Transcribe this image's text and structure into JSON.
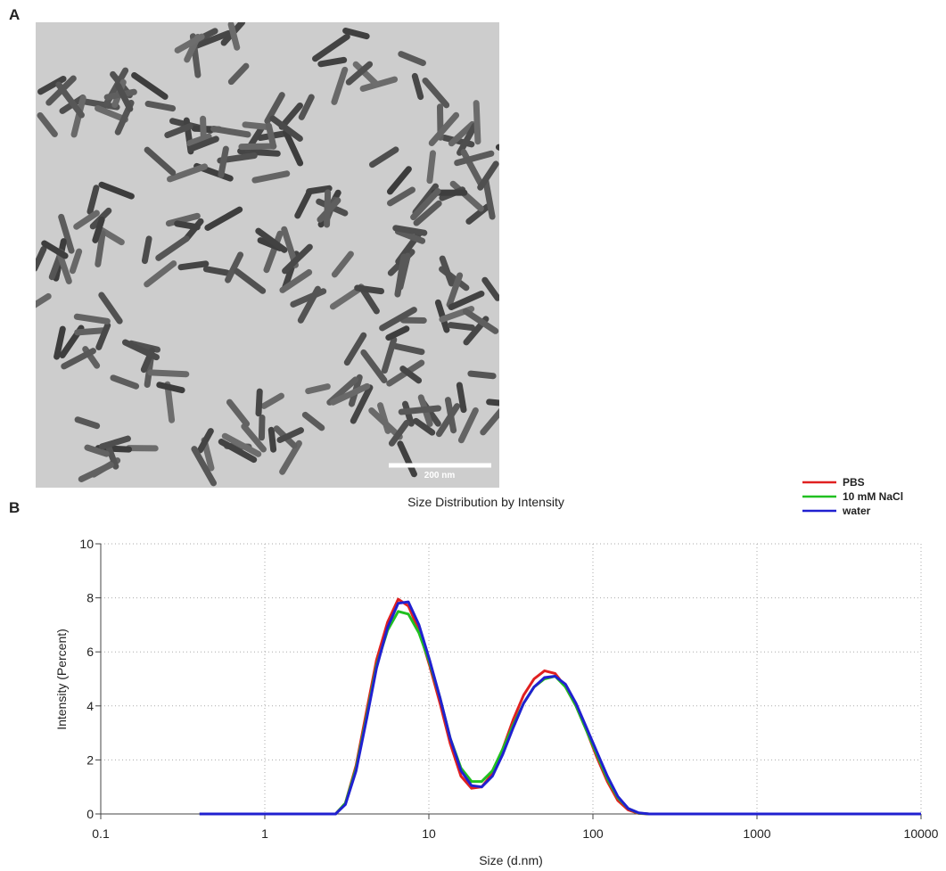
{
  "figure": {
    "panel_a_label": "A",
    "scale_bar_label": "200 nm",
    "panel_b_label": "B"
  },
  "chart_data": {
    "type": "line",
    "title": "Size Distribution by Intensity",
    "x_label": "Size (d.nm)",
    "y_label": "Intensity (Percent)",
    "x_scale": "log",
    "xlim": [
      0.1,
      10000
    ],
    "xticks": [
      0.1,
      1,
      10,
      100,
      1000,
      10000
    ],
    "ylim": [
      0,
      10
    ],
    "yticks": [
      0,
      2,
      4,
      6,
      8,
      10
    ],
    "grid": true,
    "legend_position": "top-right",
    "x": [
      0.4,
      1,
      2,
      2.7,
      3.1,
      3.6,
      4.2,
      4.8,
      5.6,
      6.5,
      7.5,
      8.7,
      10.1,
      11.7,
      13.5,
      15.7,
      18.2,
      21,
      24.4,
      28.2,
      32.7,
      37.8,
      43.8,
      50.7,
      58.8,
      68.1,
      78.8,
      91.3,
      105.7,
      122.4,
      141.8,
      164.2,
      190.1,
      220,
      500,
      1000,
      5000,
      10000
    ],
    "series": [
      {
        "name": "PBS",
        "color": "#e02020",
        "values": [
          0,
          0,
          0,
          0,
          0.4,
          1.8,
          3.9,
          5.7,
          7.1,
          7.95,
          7.7,
          6.8,
          5.5,
          4.1,
          2.6,
          1.4,
          0.95,
          1.0,
          1.5,
          2.4,
          3.5,
          4.4,
          5.0,
          5.3,
          5.2,
          4.7,
          4.0,
          3.1,
          2.1,
          1.2,
          0.5,
          0.15,
          0.02,
          0,
          0,
          0,
          0,
          0
        ]
      },
      {
        "name": "10 mM NaCl",
        "color": "#20c020",
        "values": [
          0,
          0,
          0,
          0,
          0.4,
          1.7,
          3.7,
          5.5,
          6.8,
          7.5,
          7.4,
          6.7,
          5.6,
          4.3,
          2.8,
          1.7,
          1.2,
          1.2,
          1.6,
          2.4,
          3.3,
          4.1,
          4.7,
          5.0,
          5.1,
          4.7,
          4.0,
          3.1,
          2.2,
          1.3,
          0.6,
          0.2,
          0.03,
          0,
          0,
          0,
          0,
          0
        ]
      },
      {
        "name": "water",
        "color": "#2020d0",
        "values": [
          0,
          0,
          0,
          0,
          0.35,
          1.6,
          3.6,
          5.4,
          6.9,
          7.8,
          7.85,
          7.0,
          5.7,
          4.3,
          2.8,
          1.6,
          1.05,
          1.0,
          1.4,
          2.2,
          3.2,
          4.1,
          4.7,
          5.05,
          5.1,
          4.8,
          4.1,
          3.2,
          2.3,
          1.4,
          0.65,
          0.2,
          0.04,
          0,
          0,
          0,
          0,
          0
        ]
      }
    ]
  }
}
